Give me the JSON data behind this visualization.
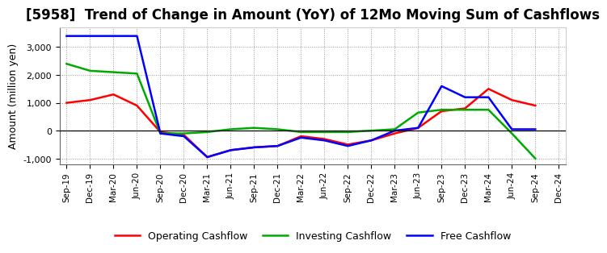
{
  "title": "[5958]  Trend of Change in Amount (YoY) of 12Mo Moving Sum of Cashflows",
  "ylabel": "Amount (million yen)",
  "x_labels": [
    "Sep-19",
    "Dec-19",
    "Mar-20",
    "Jun-20",
    "Sep-20",
    "Dec-20",
    "Mar-21",
    "Jun-21",
    "Sep-21",
    "Dec-21",
    "Mar-22",
    "Jun-22",
    "Sep-22",
    "Dec-22",
    "Mar-23",
    "Jun-23",
    "Sep-23",
    "Dec-23",
    "Mar-24",
    "Jun-24",
    "Sep-24",
    "Dec-24"
  ],
  "operating": [
    1000,
    1100,
    1300,
    900,
    -50,
    -150,
    -950,
    -700,
    -600,
    -550,
    -200,
    -300,
    -500,
    -350,
    -100,
    100,
    700,
    800,
    1500,
    1100,
    900,
    null
  ],
  "investing": [
    2400,
    2150,
    2100,
    2050,
    -100,
    -100,
    -50,
    50,
    100,
    50,
    -50,
    -50,
    -50,
    0,
    50,
    650,
    750,
    750,
    750,
    -100,
    -1000,
    null
  ],
  "free": [
    3400,
    3400,
    3400,
    3400,
    -100,
    -200,
    -950,
    -700,
    -600,
    -550,
    -250,
    -350,
    -550,
    -350,
    0,
    100,
    1600,
    1200,
    1200,
    50,
    50,
    null
  ],
  "operating_color": "#ff0000",
  "investing_color": "#00aa00",
  "free_color": "#0000ff",
  "ylim": [
    -1200,
    3700
  ],
  "yticks": [
    -1000,
    0,
    1000,
    2000,
    3000
  ],
  "grid_color": "#999999",
  "background_color": "#ffffff",
  "title_fontsize": 12,
  "legend_labels": [
    "Operating Cashflow",
    "Investing Cashflow",
    "Free Cashflow"
  ]
}
